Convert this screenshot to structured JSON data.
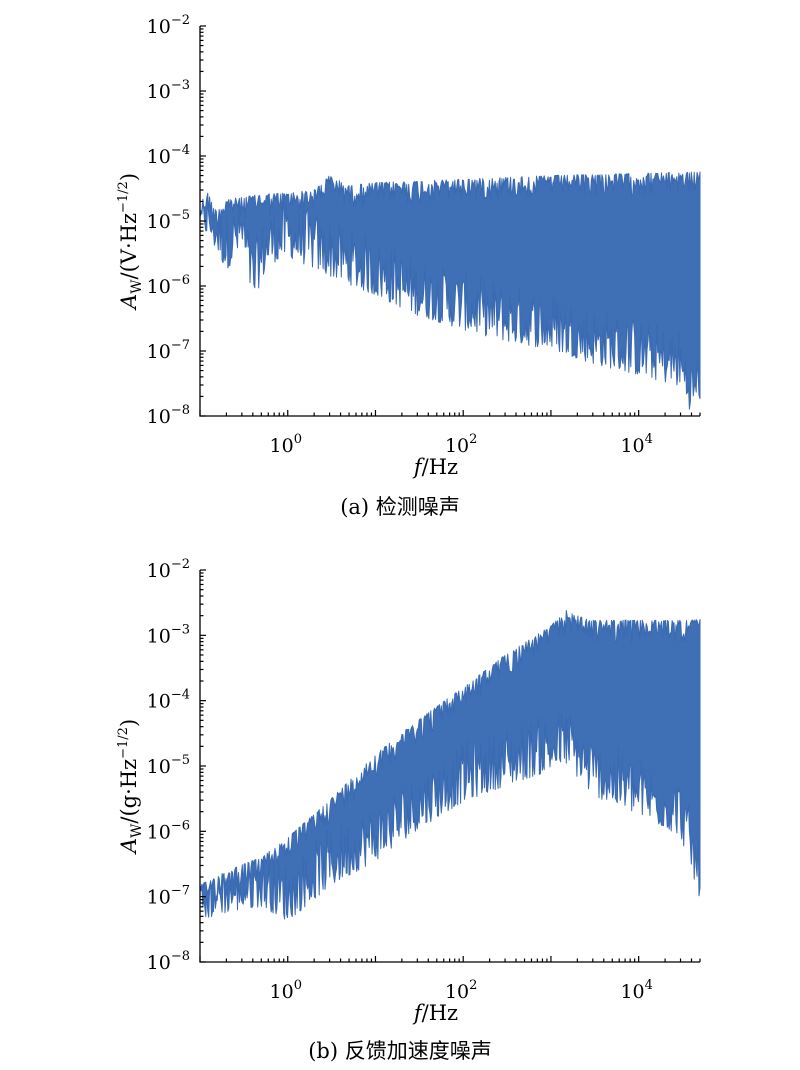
{
  "chart_data": [
    {
      "type": "line",
      "caption": "(a) 检测噪声",
      "xlabel": {
        "main": "f",
        "unit": "/Hz"
      },
      "ylabel": {
        "main": "A",
        "sub": "W",
        "unit": "/(V·Hz",
        "exp": "−1/2",
        "close": ")"
      },
      "x_scale": "log",
      "y_scale": "log",
      "xlim": [
        0.1,
        50000
      ],
      "ylim": [
        1e-08,
        0.01
      ],
      "x_ticks": [
        {
          "base": "10",
          "exp": "0",
          "value": 1
        },
        {
          "base": "10",
          "exp": "2",
          "value": 100
        },
        {
          "base": "10",
          "exp": "4",
          "value": 10000
        }
      ],
      "y_ticks": [
        {
          "base": "10",
          "exp": "−8",
          "value": 1e-08
        },
        {
          "base": "10",
          "exp": "−7",
          "value": 1e-07
        },
        {
          "base": "10",
          "exp": "−6",
          "value": 1e-06
        },
        {
          "base": "10",
          "exp": "−5",
          "value": 1e-05
        },
        {
          "base": "10",
          "exp": "−4",
          "value": 0.0001
        },
        {
          "base": "10",
          "exp": "−3",
          "value": 0.001
        },
        {
          "base": "10",
          "exp": "−2",
          "value": 0.01
        }
      ],
      "grid": false,
      "color": "#3f6fb5",
      "envelope_upper": {
        "x": [
          0.1,
          0.12,
          0.15,
          0.2,
          0.3,
          0.5,
          1,
          2,
          3,
          5,
          10,
          30,
          100,
          300,
          1000,
          3000,
          10000,
          30000,
          50000
        ],
        "y": [
          1.8e-05,
          2.9e-05,
          1.5e-05,
          2.2e-05,
          2.3e-05,
          2.6e-05,
          2.7e-05,
          3e-05,
          5e-05,
          3.5e-05,
          3.9e-05,
          4.1e-05,
          4.4e-05,
          4.7e-05,
          5e-05,
          5.2e-05,
          5.4e-05,
          5.6e-05,
          5.7e-05
        ]
      },
      "envelope_lower": {
        "x": [
          0.1,
          0.15,
          0.2,
          0.3,
          0.4,
          0.6,
          1,
          3,
          10,
          30,
          100,
          300,
          1000,
          3000,
          10000,
          30000,
          40000,
          50000
        ],
        "y": [
          1.2e-05,
          5e-06,
          2.5e-06,
          5e-06,
          8e-07,
          3e-06,
          4e-06,
          2e-06,
          1e-06,
          5e-07,
          3e-07,
          2e-07,
          1.5e-07,
          9e-08,
          6e-08,
          4e-08,
          1.5e-08,
          2.5e-08
        ]
      }
    },
    {
      "type": "line",
      "caption": "(b) 反馈加速度噪声",
      "xlabel": {
        "main": "f",
        "unit": "/Hz"
      },
      "ylabel": {
        "main": "A",
        "sub": "W",
        "unit": "/(g·Hz",
        "exp": "−1/2",
        "close": ")"
      },
      "x_scale": "log",
      "y_scale": "log",
      "xlim": [
        0.1,
        50000
      ],
      "ylim": [
        1e-08,
        0.01
      ],
      "x_ticks": [
        {
          "base": "10",
          "exp": "0",
          "value": 1
        },
        {
          "base": "10",
          "exp": "2",
          "value": 100
        },
        {
          "base": "10",
          "exp": "4",
          "value": 10000
        }
      ],
      "y_ticks": [
        {
          "base": "10",
          "exp": "−8",
          "value": 1e-08
        },
        {
          "base": "10",
          "exp": "−7",
          "value": 1e-07
        },
        {
          "base": "10",
          "exp": "−6",
          "value": 1e-06
        },
        {
          "base": "10",
          "exp": "−5",
          "value": 1e-05
        },
        {
          "base": "10",
          "exp": "−4",
          "value": 0.0001
        },
        {
          "base": "10",
          "exp": "−3",
          "value": 0.001
        },
        {
          "base": "10",
          "exp": "−2",
          "value": 0.01
        }
      ],
      "grid": false,
      "color": "#3f6fb5",
      "envelope_upper": {
        "x": [
          0.1,
          0.2,
          0.5,
          1,
          3,
          10,
          30,
          100,
          300,
          1000,
          1500,
          2000,
          3000,
          10000,
          30000,
          50000
        ],
        "y": [
          1.5e-07,
          2.5e-07,
          4e-07,
          8e-07,
          3e-06,
          1.5e-05,
          5e-05,
          0.00016,
          0.0005,
          0.0014,
          0.0024,
          0.002,
          0.0017,
          0.0017,
          0.0017,
          0.00175
        ]
      },
      "envelope_lower": {
        "x": [
          0.1,
          0.2,
          0.5,
          1,
          3,
          10,
          30,
          100,
          300,
          1000,
          1500,
          3000,
          10000,
          30000,
          50000
        ],
        "y": [
          6e-08,
          8e-08,
          1e-07,
          6e-08,
          2e-07,
          5e-07,
          1.5e-06,
          4e-06,
          7e-06,
          1.2e-05,
          1.5e-05,
          5e-06,
          2.5e-06,
          1.2e-06,
          1.3e-07
        ]
      }
    }
  ]
}
